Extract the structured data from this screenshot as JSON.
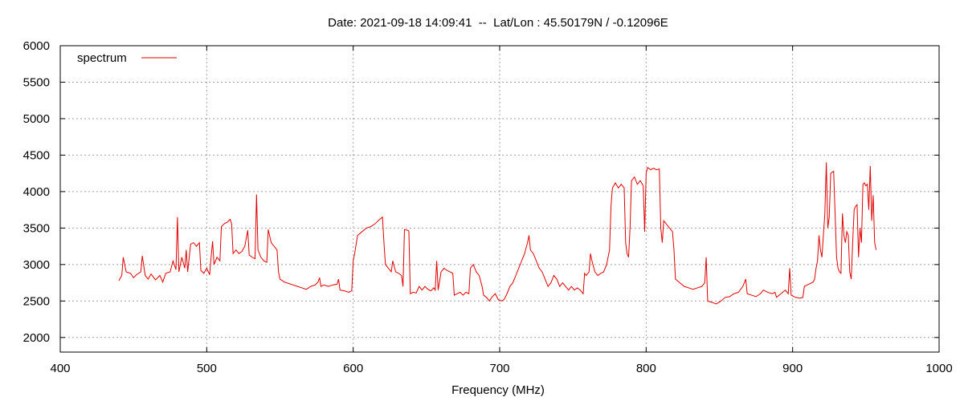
{
  "chart_data": {
    "type": "line",
    "title": "Date: 2021-09-18 14:09:41  --  Lat/Lon : 45.50179N / -0.12096E",
    "xlabel": "Frequency (MHz)",
    "ylabel": "",
    "xlim": [
      400,
      1000
    ],
    "ylim": [
      1800,
      6000
    ],
    "x_ticks": [
      400,
      500,
      600,
      700,
      800,
      900,
      1000
    ],
    "y_ticks": [
      2000,
      2500,
      3000,
      3500,
      4000,
      4500,
      5000,
      5500,
      6000
    ],
    "x_tick_labels": [
      "400",
      "500",
      "600",
      "700",
      "800",
      "900",
      "1000"
    ],
    "y_tick_labels": [
      "2000",
      "2500",
      "3000",
      "3500",
      "4000",
      "4500",
      "5000",
      "5500",
      "6000"
    ],
    "grid": true,
    "legend_position": "top-left",
    "series": [
      {
        "name": "spectrum",
        "color": "#e00000",
        "points": [
          [
            440,
            2780
          ],
          [
            442,
            2850
          ],
          [
            443,
            3100
          ],
          [
            445,
            2900
          ],
          [
            448,
            2880
          ],
          [
            450,
            2820
          ],
          [
            452,
            2860
          ],
          [
            455,
            2900
          ],
          [
            456,
            3120
          ],
          [
            458,
            2850
          ],
          [
            460,
            2800
          ],
          [
            462,
            2870
          ],
          [
            465,
            2790
          ],
          [
            468,
            2850
          ],
          [
            470,
            2760
          ],
          [
            472,
            2880
          ],
          [
            475,
            2900
          ],
          [
            477,
            3050
          ],
          [
            479,
            2930
          ],
          [
            480,
            3650
          ],
          [
            481,
            2900
          ],
          [
            483,
            3100
          ],
          [
            485,
            2950
          ],
          [
            486,
            3200
          ],
          [
            487,
            2900
          ],
          [
            489,
            3280
          ],
          [
            491,
            3300
          ],
          [
            493,
            3250
          ],
          [
            495,
            3300
          ],
          [
            496,
            2920
          ],
          [
            498,
            2880
          ],
          [
            500,
            2950
          ],
          [
            502,
            2860
          ],
          [
            503,
            3100
          ],
          [
            504,
            3320
          ],
          [
            505,
            3000
          ],
          [
            507,
            3100
          ],
          [
            509,
            3050
          ],
          [
            510,
            3520
          ],
          [
            512,
            3560
          ],
          [
            514,
            3580
          ],
          [
            516,
            3620
          ],
          [
            517,
            3560
          ],
          [
            518,
            3150
          ],
          [
            520,
            3200
          ],
          [
            522,
            3150
          ],
          [
            524,
            3180
          ],
          [
            526,
            3250
          ],
          [
            528,
            3470
          ],
          [
            529,
            3130
          ],
          [
            531,
            3100
          ],
          [
            533,
            3080
          ],
          [
            534,
            3960
          ],
          [
            535,
            3200
          ],
          [
            537,
            3100
          ],
          [
            539,
            3050
          ],
          [
            541,
            3030
          ],
          [
            542,
            3480
          ],
          [
            544,
            3300
          ],
          [
            546,
            3250
          ],
          [
            548,
            3200
          ],
          [
            549,
            2900
          ],
          [
            550,
            2800
          ],
          [
            553,
            2760
          ],
          [
            556,
            2740
          ],
          [
            559,
            2720
          ],
          [
            562,
            2700
          ],
          [
            565,
            2680
          ],
          [
            568,
            2660
          ],
          [
            571,
            2700
          ],
          [
            574,
            2720
          ],
          [
            576,
            2760
          ],
          [
            577,
            2820
          ],
          [
            578,
            2700
          ],
          [
            580,
            2720
          ],
          [
            583,
            2700
          ],
          [
            586,
            2720
          ],
          [
            589,
            2730
          ],
          [
            590,
            2800
          ],
          [
            591,
            2650
          ],
          [
            594,
            2640
          ],
          [
            597,
            2620
          ],
          [
            599,
            2640
          ],
          [
            600,
            3050
          ],
          [
            601,
            3150
          ],
          [
            603,
            3400
          ],
          [
            606,
            3450
          ],
          [
            609,
            3500
          ],
          [
            612,
            3520
          ],
          [
            615,
            3560
          ],
          [
            618,
            3620
          ],
          [
            620,
            3650
          ],
          [
            621,
            3300
          ],
          [
            622,
            3000
          ],
          [
            624,
            2950
          ],
          [
            626,
            2900
          ],
          [
            627,
            3050
          ],
          [
            629,
            2900
          ],
          [
            631,
            2880
          ],
          [
            633,
            2850
          ],
          [
            634,
            2700
          ],
          [
            635,
            3480
          ],
          [
            637,
            3470
          ],
          [
            638,
            3460
          ],
          [
            639,
            2600
          ],
          [
            641,
            2620
          ],
          [
            643,
            2610
          ],
          [
            645,
            2700
          ],
          [
            647,
            2650
          ],
          [
            649,
            2700
          ],
          [
            651,
            2660
          ],
          [
            653,
            2640
          ],
          [
            655,
            2680
          ],
          [
            656,
            2650
          ],
          [
            657,
            3050
          ],
          [
            658,
            2650
          ],
          [
            660,
            2900
          ],
          [
            662,
            2950
          ],
          [
            664,
            2920
          ],
          [
            666,
            2900
          ],
          [
            668,
            2880
          ],
          [
            669,
            2580
          ],
          [
            671,
            2600
          ],
          [
            673,
            2620
          ],
          [
            675,
            2580
          ],
          [
            677,
            2620
          ],
          [
            679,
            2600
          ],
          [
            680,
            2950
          ],
          [
            682,
            3000
          ],
          [
            684,
            2900
          ],
          [
            686,
            2850
          ],
          [
            688,
            2700
          ],
          [
            689,
            2580
          ],
          [
            691,
            2550
          ],
          [
            693,
            2500
          ],
          [
            695,
            2560
          ],
          [
            697,
            2600
          ],
          [
            699,
            2520
          ],
          [
            701,
            2500
          ],
          [
            703,
            2520
          ],
          [
            705,
            2600
          ],
          [
            707,
            2700
          ],
          [
            709,
            2750
          ],
          [
            711,
            2850
          ],
          [
            713,
            2950
          ],
          [
            715,
            3050
          ],
          [
            717,
            3150
          ],
          [
            719,
            3300
          ],
          [
            720,
            3400
          ],
          [
            721,
            3200
          ],
          [
            723,
            3150
          ],
          [
            725,
            3050
          ],
          [
            727,
            2950
          ],
          [
            729,
            2900
          ],
          [
            731,
            2800
          ],
          [
            733,
            2700
          ],
          [
            735,
            2750
          ],
          [
            737,
            2850
          ],
          [
            739,
            2800
          ],
          [
            741,
            2700
          ],
          [
            743,
            2750
          ],
          [
            745,
            2700
          ],
          [
            747,
            2650
          ],
          [
            749,
            2700
          ],
          [
            751,
            2650
          ],
          [
            753,
            2680
          ],
          [
            755,
            2650
          ],
          [
            757,
            2600
          ],
          [
            758,
            2880
          ],
          [
            759,
            2850
          ],
          [
            761,
            2900
          ],
          [
            762,
            3150
          ],
          [
            763,
            3050
          ],
          [
            765,
            2900
          ],
          [
            767,
            2850
          ],
          [
            769,
            2880
          ],
          [
            771,
            2900
          ],
          [
            773,
            3000
          ],
          [
            775,
            3200
          ],
          [
            776,
            3800
          ],
          [
            777,
            4050
          ],
          [
            779,
            4120
          ],
          [
            781,
            4050
          ],
          [
            783,
            4100
          ],
          [
            785,
            4050
          ],
          [
            786,
            3300
          ],
          [
            787,
            3150
          ],
          [
            788,
            3100
          ],
          [
            789,
            3500
          ],
          [
            790,
            4150
          ],
          [
            792,
            4200
          ],
          [
            794,
            4100
          ],
          [
            796,
            4150
          ],
          [
            798,
            4080
          ],
          [
            799,
            3450
          ],
          [
            800,
            4250
          ],
          [
            801,
            4330
          ],
          [
            803,
            4300
          ],
          [
            805,
            4320
          ],
          [
            807,
            4300
          ],
          [
            809,
            4310
          ],
          [
            810,
            3500
          ],
          [
            811,
            3300
          ],
          [
            812,
            3600
          ],
          [
            814,
            3550
          ],
          [
            816,
            3500
          ],
          [
            818,
            3450
          ],
          [
            819,
            3200
          ],
          [
            820,
            2800
          ],
          [
            823,
            2750
          ],
          [
            826,
            2700
          ],
          [
            829,
            2680
          ],
          [
            832,
            2660
          ],
          [
            835,
            2680
          ],
          [
            838,
            2700
          ],
          [
            840,
            2750
          ],
          [
            841,
            3100
          ],
          [
            842,
            2500
          ],
          [
            845,
            2480
          ],
          [
            848,
            2460
          ],
          [
            851,
            2500
          ],
          [
            854,
            2550
          ],
          [
            857,
            2560
          ],
          [
            860,
            2600
          ],
          [
            863,
            2620
          ],
          [
            866,
            2700
          ],
          [
            868,
            2800
          ],
          [
            869,
            2600
          ],
          [
            872,
            2580
          ],
          [
            875,
            2560
          ],
          [
            878,
            2600
          ],
          [
            880,
            2650
          ],
          [
            883,
            2620
          ],
          [
            886,
            2600
          ],
          [
            888,
            2620
          ],
          [
            889,
            2550
          ],
          [
            892,
            2600
          ],
          [
            895,
            2650
          ],
          [
            897,
            2600
          ],
          [
            898,
            2950
          ],
          [
            899,
            2580
          ],
          [
            902,
            2550
          ],
          [
            905,
            2540
          ],
          [
            907,
            2550
          ],
          [
            908,
            2700
          ],
          [
            910,
            2720
          ],
          [
            912,
            2740
          ],
          [
            914,
            2760
          ],
          [
            915,
            2800
          ],
          [
            916,
            2950
          ],
          [
            917,
            3050
          ],
          [
            918,
            3400
          ],
          [
            919,
            3200
          ],
          [
            920,
            3100
          ],
          [
            922,
            3700
          ],
          [
            923,
            4400
          ],
          [
            924,
            3500
          ],
          [
            925,
            3650
          ],
          [
            926,
            4250
          ],
          [
            928,
            4280
          ],
          [
            929,
            3700
          ],
          [
            930,
            3100
          ],
          [
            931,
            2950
          ],
          [
            932,
            2900
          ],
          [
            933,
            2880
          ],
          [
            934,
            3700
          ],
          [
            935,
            3400
          ],
          [
            936,
            3300
          ],
          [
            937,
            3450
          ],
          [
            938,
            3400
          ],
          [
            939,
            2900
          ],
          [
            940,
            2800
          ],
          [
            941,
            3300
          ],
          [
            942,
            3750
          ],
          [
            943,
            3800
          ],
          [
            944,
            3820
          ],
          [
            945,
            3100
          ],
          [
            946,
            3500
          ],
          [
            947,
            3300
          ],
          [
            948,
            4100
          ],
          [
            949,
            4120
          ],
          [
            950,
            4080
          ],
          [
            951,
            4100
          ],
          [
            952,
            3750
          ],
          [
            953,
            4350
          ],
          [
            954,
            3600
          ],
          [
            955,
            3950
          ],
          [
            956,
            3300
          ],
          [
            957,
            3200
          ]
        ]
      }
    ]
  }
}
